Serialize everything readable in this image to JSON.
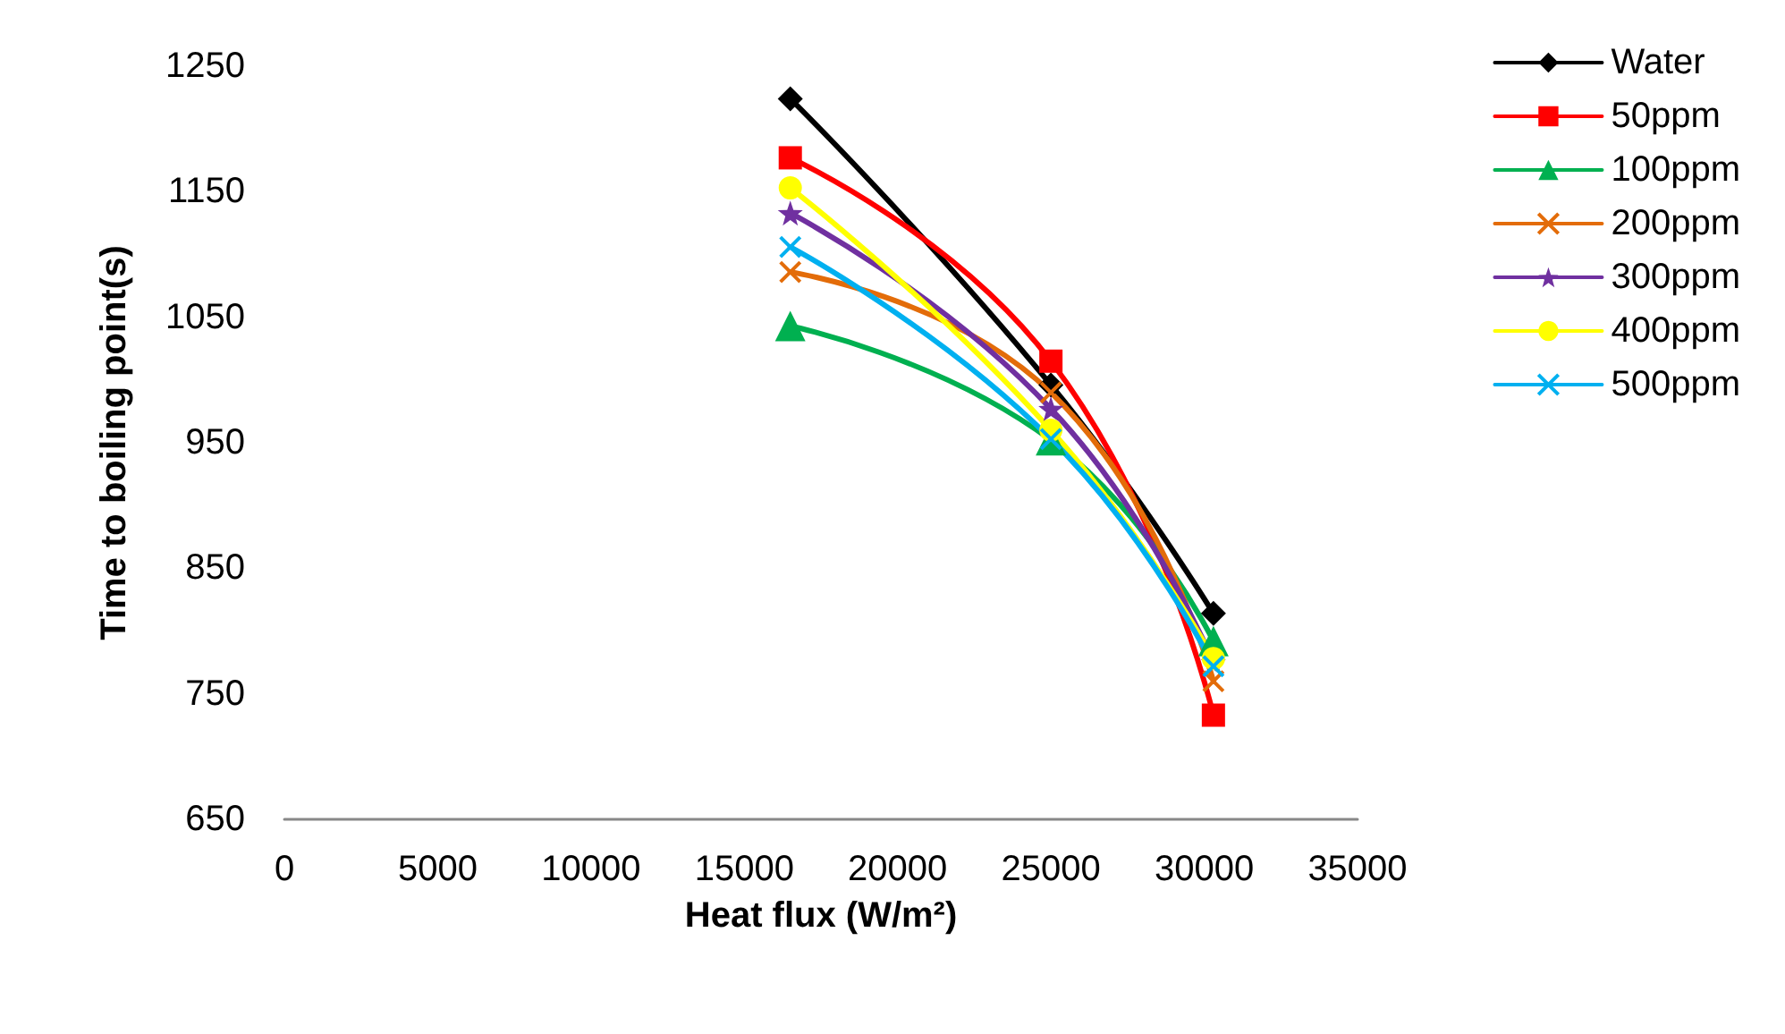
{
  "chart_data": {
    "type": "line",
    "xlabel": "Heat flux (W/m²)",
    "ylabel": "Time to boiling point(s)",
    "xlim": [
      0,
      35000
    ],
    "xticks": [
      0,
      5000,
      10000,
      15000,
      20000,
      25000,
      30000,
      35000
    ],
    "ylim": [
      650,
      1250
    ],
    "yticks": [
      650,
      750,
      850,
      950,
      1050,
      1150,
      1250
    ],
    "x": [
      16500,
      25000,
      30300
    ],
    "grid": false,
    "legend": "right",
    "series": [
      {
        "name": "Water",
        "color": "#000000",
        "marker": "diamond",
        "values": [
          1224,
          996,
          814
        ]
      },
      {
        "name": "50ppm",
        "color": "#ff0000",
        "marker": "square",
        "values": [
          1177,
          1015,
          733
        ]
      },
      {
        "name": "100ppm",
        "color": "#00b050",
        "marker": "triangle",
        "values": [
          1043,
          952,
          792
        ]
      },
      {
        "name": "200ppm",
        "color": "#e36c09",
        "marker": "cross",
        "values": [
          1086,
          990,
          760
        ]
      },
      {
        "name": "300ppm",
        "color": "#7030a0",
        "marker": "star",
        "values": [
          1133,
          977,
          775
        ]
      },
      {
        "name": "400ppm",
        "color": "#ffff00",
        "marker": "circle",
        "values": [
          1153,
          960,
          778
        ]
      },
      {
        "name": "500ppm",
        "color": "#00b0f0",
        "marker": "cross",
        "values": [
          1106,
          953,
          772
        ]
      }
    ]
  }
}
